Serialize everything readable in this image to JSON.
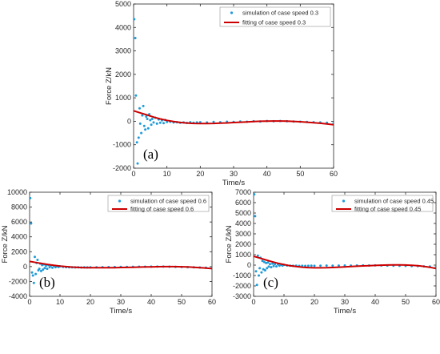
{
  "colors": {
    "simulation": "#1f9bd9",
    "fitting": "#cc0000",
    "axis": "#262626"
  },
  "chart_data": [
    {
      "type": "scatter",
      "panel": "(a)",
      "xlabel": "Time/s",
      "ylabel": "Force Z/kN",
      "xlim": [
        0,
        60
      ],
      "ylim": [
        -2000,
        5000
      ],
      "xticks": [
        "0",
        "10",
        "20",
        "30",
        "40",
        "50",
        "60"
      ],
      "yticks": [
        "-2000",
        "-1000",
        "0",
        "1000",
        "2000",
        "3000",
        "4000",
        "5000"
      ],
      "legend_position": "top-right",
      "series": [
        {
          "name": "simulation of case speed 0.3",
          "kind": "scatter",
          "x": [
            0.2,
            0.5,
            0.7,
            1.0,
            1.2,
            1.5,
            1.8,
            2.0,
            2.3,
            2.6,
            2.9,
            3.2,
            3.5,
            3.8,
            4.1,
            4.4,
            4.7,
            5.0,
            5.3,
            5.6,
            6.0,
            6.5,
            7.0,
            7.5,
            8.0,
            8.5,
            9.0,
            9.5,
            10,
            11,
            12,
            13,
            14,
            15,
            16,
            17,
            18,
            19,
            20,
            22,
            24,
            26,
            28,
            30,
            32,
            34,
            36,
            38,
            40,
            42,
            44,
            46,
            48,
            50,
            52,
            54,
            56,
            58,
            60
          ],
          "y": [
            4350,
            3550,
            1100,
            -900,
            -1800,
            -700,
            550,
            -100,
            -500,
            250,
            650,
            -200,
            -350,
            200,
            100,
            -300,
            300,
            50,
            -150,
            100,
            -50,
            150,
            -100,
            80,
            -60,
            40,
            -80,
            60,
            -30,
            -20,
            -50,
            -40,
            -60,
            -50,
            -70,
            -40,
            -60,
            -50,
            -40,
            -50,
            -30,
            -40,
            -20,
            -30,
            -10,
            -20,
            0,
            -10,
            10,
            0,
            10,
            0,
            -10,
            -20,
            -30,
            -40,
            -50,
            -60,
            -80
          ]
        },
        {
          "name": "fitting of case speed 0.3",
          "kind": "line",
          "x": [
            0,
            2,
            4,
            6,
            8,
            10,
            12,
            14,
            16,
            18,
            20,
            22,
            24,
            26,
            28,
            30,
            32,
            34,
            36,
            38,
            40,
            42,
            44,
            46,
            48,
            50,
            52,
            54,
            56,
            58,
            60
          ],
          "y": [
            450,
            360,
            270,
            180,
            100,
            40,
            -10,
            -50,
            -75,
            -90,
            -95,
            -95,
            -90,
            -80,
            -70,
            -55,
            -40,
            -25,
            -10,
            0,
            5,
            10,
            10,
            5,
            -5,
            -20,
            -40,
            -60,
            -85,
            -115,
            -150
          ]
        }
      ]
    },
    {
      "type": "scatter",
      "panel": "(b)",
      "xlabel": "Time/s",
      "ylabel": "Force Z/kN",
      "xlim": [
        0,
        60
      ],
      "ylim": [
        -4000,
        10000
      ],
      "xticks": [
        "0",
        "10",
        "20",
        "30",
        "40",
        "50",
        "60"
      ],
      "yticks": [
        "-4000",
        "-2000",
        "0",
        "2000",
        "4000",
        "6000",
        "8000",
        "10000"
      ],
      "legend_position": "top-right",
      "series": [
        {
          "name": "simulation of case speed 0.6",
          "kind": "scatter",
          "x": [
            0.2,
            0.5,
            0.8,
            1.1,
            1.4,
            1.7,
            2.0,
            2.3,
            2.6,
            2.9,
            3.2,
            3.5,
            3.8,
            4.1,
            4.4,
            4.7,
            5.0,
            5.4,
            5.8,
            6.2,
            6.6,
            7.0,
            7.5,
            8.0,
            8.5,
            9.0,
            9.5,
            10,
            11,
            12,
            13,
            14,
            15,
            16,
            17,
            18,
            19,
            20,
            22,
            24,
            26,
            28,
            30,
            32,
            34,
            36,
            38,
            40,
            42,
            44,
            46,
            48,
            50,
            52,
            54,
            56,
            58,
            60
          ],
          "y": [
            9200,
            5800,
            -800,
            -1200,
            -2200,
            1300,
            -1000,
            500,
            900,
            -500,
            -300,
            400,
            -600,
            200,
            -400,
            300,
            -200,
            100,
            -300,
            200,
            -100,
            150,
            -150,
            100,
            -80,
            50,
            -60,
            40,
            -50,
            -80,
            -100,
            -90,
            -110,
            -100,
            -120,
            -100,
            -110,
            -100,
            -90,
            -80,
            -70,
            -60,
            -50,
            -40,
            -30,
            -20,
            -20,
            -10,
            0,
            -10,
            -20,
            -40,
            -60,
            -80,
            -100,
            -120,
            -140,
            -160
          ]
        },
        {
          "name": "fitting of case speed 0.6",
          "kind": "line",
          "x": [
            0,
            2,
            4,
            6,
            8,
            10,
            12,
            14,
            16,
            18,
            20,
            22,
            24,
            26,
            28,
            30,
            32,
            34,
            36,
            38,
            40,
            42,
            44,
            46,
            48,
            50,
            52,
            54,
            56,
            58,
            60
          ],
          "y": [
            700,
            560,
            420,
            290,
            170,
            70,
            -10,
            -70,
            -110,
            -140,
            -155,
            -160,
            -160,
            -150,
            -140,
            -125,
            -110,
            -90,
            -70,
            -50,
            -35,
            -20,
            -10,
            -5,
            -10,
            -25,
            -50,
            -90,
            -140,
            -200,
            -270
          ]
        }
      ]
    },
    {
      "type": "scatter",
      "panel": "(c)",
      "xlabel": "Time/s",
      "ylabel": "Force Z/kN",
      "xlim": [
        0,
        60
      ],
      "ylim": [
        -3000,
        7000
      ],
      "xticks": [
        "0",
        "10",
        "20",
        "30",
        "40",
        "50",
        "60"
      ],
      "yticks": [
        "-3000",
        "-2000",
        "-1000",
        "0",
        "1000",
        "2000",
        "3000",
        "4000",
        "5000",
        "6000",
        "7000"
      ],
      "legend_position": "top-right",
      "series": [
        {
          "name": "simulation of case speed 0.45",
          "kind": "scatter",
          "x": [
            0.2,
            0.5,
            0.8,
            1.1,
            1.4,
            1.7,
            2.0,
            2.3,
            2.6,
            2.9,
            3.2,
            3.5,
            3.8,
            4.1,
            4.4,
            4.7,
            5.0,
            5.4,
            5.8,
            6.2,
            6.6,
            7.0,
            7.5,
            8.0,
            8.5,
            9.0,
            9.5,
            10,
            11,
            12,
            13,
            14,
            15,
            16,
            17,
            18,
            19,
            20,
            22,
            24,
            26,
            28,
            30,
            32,
            34,
            36,
            38,
            40,
            42,
            44,
            46,
            48,
            50,
            52,
            54,
            56,
            58,
            60
          ],
          "y": [
            6800,
            4700,
            -600,
            -1900,
            900,
            -1000,
            -300,
            700,
            -700,
            400,
            -400,
            300,
            -500,
            200,
            -300,
            250,
            -150,
            100,
            -200,
            150,
            -100,
            100,
            -120,
            80,
            -60,
            40,
            -50,
            30,
            -40,
            -60,
            -70,
            -60,
            -80,
            -70,
            -80,
            -70,
            -60,
            -70,
            -60,
            -50,
            -60,
            -50,
            -40,
            -50,
            -40,
            -30,
            -40,
            -30,
            -40,
            -50,
            -60,
            -70,
            -80,
            -90,
            -100,
            -120,
            -140,
            -160
          ]
        },
        {
          "name": "fitting of case speed 0.45",
          "kind": "line",
          "x": [
            0,
            2,
            4,
            6,
            8,
            10,
            12,
            14,
            16,
            18,
            20,
            22,
            24,
            26,
            28,
            30,
            32,
            34,
            36,
            38,
            40,
            42,
            44,
            46,
            48,
            50,
            52,
            54,
            56,
            58,
            60
          ],
          "y": [
            850,
            680,
            500,
            330,
            180,
            50,
            -60,
            -140,
            -200,
            -240,
            -260,
            -260,
            -250,
            -230,
            -200,
            -170,
            -140,
            -110,
            -80,
            -55,
            -30,
            -10,
            5,
            15,
            15,
            5,
            -20,
            -60,
            -120,
            -210,
            -330
          ]
        }
      ]
    }
  ]
}
